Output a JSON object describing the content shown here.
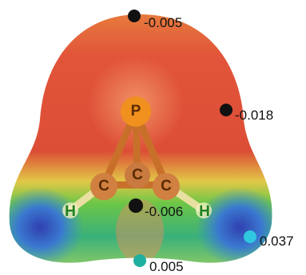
{
  "atoms": [
    "P",
    "C",
    "C",
    "C",
    "H",
    "H"
  ],
  "potentials": [
    "-0.005",
    "-0.018",
    "-0.006",
    "0.037",
    "0.005"
  ]
}
